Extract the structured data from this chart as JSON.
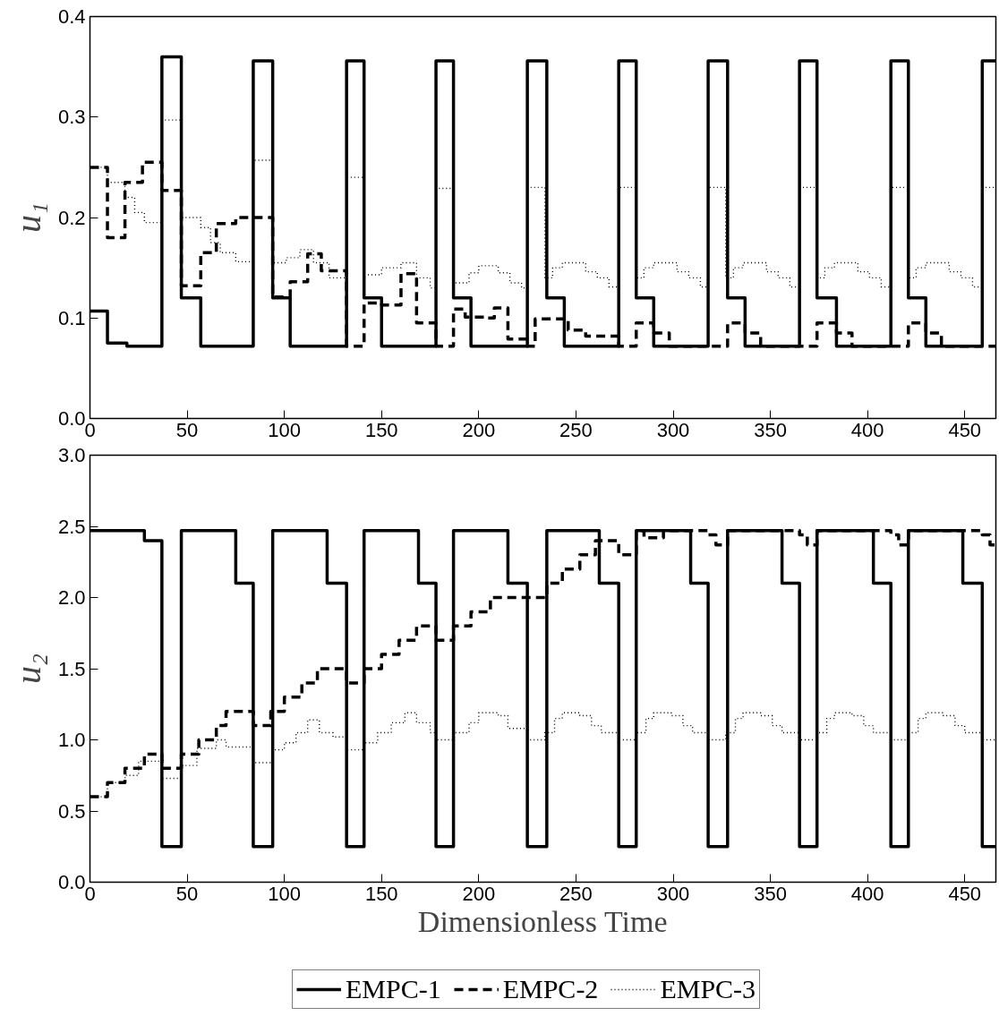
{
  "chart_data": [
    {
      "type": "step",
      "ylabel": "u₁",
      "xlim": [
        0,
        466
      ],
      "ylim": [
        0,
        0.4
      ],
      "xticks": [
        0,
        50,
        100,
        150,
        200,
        250,
        300,
        350,
        400,
        450
      ],
      "yticks": [
        {
          "value": 0,
          "label": "0.0"
        },
        0.1,
        0.2,
        0.3,
        0.4
      ],
      "series": [
        {
          "color": "#000000",
          "line_style": "solid",
          "x": [
            0,
            9,
            19,
            37,
            47,
            57,
            84,
            94,
            103,
            132,
            141,
            150,
            178,
            187,
            196,
            225,
            235,
            244,
            272,
            281,
            290,
            318,
            328,
            337,
            365,
            374,
            384,
            412,
            421,
            430,
            459,
            466
          ],
          "values": [
            0.107,
            0.075,
            0.072,
            0.36,
            0.12,
            0.072,
            0.356,
            0.12,
            0.072,
            0.356,
            0.12,
            0.072,
            0.356,
            0.12,
            0.072,
            0.356,
            0.12,
            0.072,
            0.356,
            0.12,
            0.072,
            0.356,
            0.12,
            0.072,
            0.356,
            0.12,
            0.072,
            0.356,
            0.12,
            0.072,
            0.356,
            0.356
          ]
        },
        {
          "color": "#000000",
          "line_style": "dashed",
          "x": [
            0,
            9,
            18,
            27,
            37,
            47,
            57,
            65,
            75,
            94,
            103,
            112,
            119,
            132,
            141,
            150,
            160,
            168,
            178,
            187,
            193,
            203,
            208,
            215,
            225,
            229,
            246,
            255,
            272,
            281,
            290,
            298,
            318,
            328,
            337,
            345,
            365,
            374,
            384,
            392,
            412,
            421,
            430,
            438,
            459,
            466
          ],
          "values": [
            0.25,
            0.18,
            0.235,
            0.255,
            0.227,
            0.132,
            0.165,
            0.194,
            0.2,
            0.121,
            0.136,
            0.164,
            0.147,
            0.072,
            0.115,
            0.113,
            0.144,
            0.095,
            0.072,
            0.109,
            0.101,
            0.1,
            0.11,
            0.079,
            0.072,
            0.099,
            0.088,
            0.082,
            0.072,
            0.095,
            0.085,
            0.072,
            0.072,
            0.095,
            0.085,
            0.072,
            0.072,
            0.095,
            0.085,
            0.072,
            0.072,
            0.095,
            0.085,
            0.072,
            0.072,
            0.072
          ]
        },
        {
          "color": "#000000",
          "line_style": "dotted",
          "x": [
            0,
            9,
            18,
            23,
            28,
            37,
            47,
            57,
            62,
            67,
            75,
            84,
            94,
            101,
            108,
            115,
            123,
            132,
            141,
            150,
            160,
            168,
            175,
            178,
            187,
            195,
            200,
            210,
            216,
            222,
            225,
            234,
            238,
            243,
            255,
            261,
            267,
            272,
            281,
            285,
            290,
            302,
            308,
            314,
            318,
            327,
            331,
            336,
            348,
            354,
            360,
            365,
            374,
            378,
            383,
            395,
            401,
            407,
            412,
            421,
            425,
            430,
            442,
            448,
            454,
            459,
            466
          ],
          "values": [
            0.25,
            0.235,
            0.22,
            0.205,
            0.195,
            0.297,
            0.2,
            0.19,
            0.175,
            0.165,
            0.156,
            0.257,
            0.155,
            0.16,
            0.168,
            0.155,
            0.14,
            0.24,
            0.143,
            0.15,
            0.155,
            0.14,
            0.13,
            0.229,
            0.135,
            0.145,
            0.152,
            0.145,
            0.135,
            0.13,
            0.23,
            0.14,
            0.15,
            0.155,
            0.146,
            0.14,
            0.131,
            0.23,
            0.14,
            0.15,
            0.155,
            0.146,
            0.14,
            0.131,
            0.23,
            0.14,
            0.15,
            0.155,
            0.146,
            0.14,
            0.131,
            0.23,
            0.14,
            0.15,
            0.155,
            0.146,
            0.14,
            0.131,
            0.23,
            0.14,
            0.15,
            0.155,
            0.146,
            0.14,
            0.131,
            0.23,
            0.23
          ]
        }
      ]
    },
    {
      "type": "step",
      "ylabel": "u₂",
      "xlabel": "Dimensionless Time",
      "xlim": [
        0,
        466
      ],
      "ylim": [
        0,
        3
      ],
      "xticks": [
        0,
        50,
        100,
        150,
        200,
        250,
        300,
        350,
        400,
        450
      ],
      "yticks": [
        {
          "value": 0,
          "label": "0.0"
        },
        0.5,
        {
          "value": 1,
          "label": "1.0"
        },
        1.5,
        {
          "value": 2,
          "label": "2.0"
        },
        2.5,
        {
          "value": 3,
          "label": "3.0"
        }
      ],
      "legend": "bottom",
      "series": [
        {
          "name": "EMPC-1",
          "color": "#000000",
          "line_style": "solid",
          "x": [
            0,
            28,
            37,
            47,
            75,
            84,
            94,
            122,
            132,
            141,
            169,
            178,
            187,
            215,
            225,
            235,
            262,
            272,
            281,
            309,
            318,
            328,
            356,
            365,
            374,
            403,
            412,
            421,
            449,
            459,
            466
          ],
          "values": [
            2.47,
            2.4,
            0.25,
            2.47,
            2.1,
            0.25,
            2.47,
            2.1,
            0.25,
            2.47,
            2.1,
            0.25,
            2.47,
            2.1,
            0.25,
            2.47,
            2.1,
            0.25,
            2.47,
            2.1,
            0.25,
            2.47,
            2.1,
            0.25,
            2.47,
            2.1,
            0.25,
            2.47,
            2.1,
            0.25,
            0.25
          ]
        },
        {
          "name": "EMPC-2",
          "color": "#000000",
          "line_style": "dashed",
          "x": [
            0,
            9,
            18,
            28,
            37,
            47,
            56,
            65,
            70,
            84,
            93,
            100,
            109,
            117,
            132,
            141,
            150,
            159,
            168,
            178,
            187,
            196,
            206,
            235,
            243,
            252,
            260,
            272,
            281,
            285,
            295,
            318,
            322,
            328,
            365,
            369,
            374,
            412,
            416,
            421,
            459,
            463,
            466
          ],
          "values": [
            0.6,
            0.7,
            0.8,
            0.9,
            0.8,
            0.9,
            1.0,
            1.1,
            1.2,
            1.1,
            1.2,
            1.3,
            1.4,
            1.5,
            1.4,
            1.5,
            1.6,
            1.7,
            1.8,
            1.7,
            1.8,
            1.9,
            2.0,
            2.1,
            2.2,
            2.3,
            2.4,
            2.3,
            2.47,
            2.42,
            2.47,
            2.44,
            2.37,
            2.47,
            2.44,
            2.37,
            2.47,
            2.44,
            2.37,
            2.47,
            2.44,
            2.37,
            2.37
          ]
        },
        {
          "name": "EMPC-3",
          "color": "#000000",
          "line_style": "dotted",
          "x": [
            0,
            9,
            18,
            25,
            37,
            47,
            55,
            65,
            70,
            84,
            94,
            100,
            106,
            112,
            118,
            125,
            132,
            141,
            148,
            155,
            162,
            168,
            175,
            178,
            187,
            195,
            200,
            210,
            215,
            225,
            234,
            239,
            243,
            252,
            258,
            263,
            272,
            281,
            286,
            290,
            299,
            305,
            310,
            318,
            327,
            332,
            336,
            345,
            351,
            356,
            365,
            374,
            379,
            383,
            392,
            398,
            403,
            412,
            421,
            426,
            430,
            439,
            445,
            450,
            459,
            466
          ],
          "values": [
            0.6,
            0.7,
            0.75,
            0.85,
            0.73,
            0.82,
            0.94,
            1.0,
            0.95,
            0.84,
            0.93,
            0.98,
            1.05,
            1.14,
            1.05,
            1.02,
            0.93,
            0.98,
            1.05,
            1.12,
            1.19,
            1.12,
            1.05,
            1.0,
            1.05,
            1.12,
            1.19,
            1.17,
            1.08,
            1.0,
            1.05,
            1.15,
            1.19,
            1.17,
            1.1,
            1.05,
            1.0,
            1.05,
            1.15,
            1.19,
            1.17,
            1.1,
            1.05,
            1.0,
            1.05,
            1.15,
            1.19,
            1.17,
            1.1,
            1.05,
            1.0,
            1.05,
            1.15,
            1.19,
            1.17,
            1.1,
            1.05,
            1.0,
            1.05,
            1.15,
            1.19,
            1.17,
            1.1,
            1.05,
            1.0,
            1.0
          ]
        }
      ]
    }
  ]
}
